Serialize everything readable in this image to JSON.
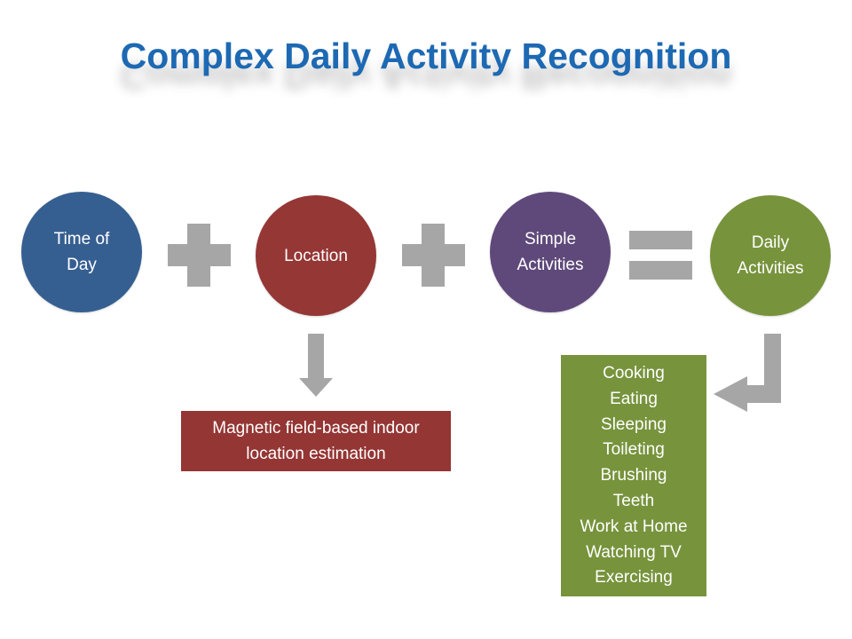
{
  "title": "Complex Daily Activity Recognition",
  "colors": {
    "title": "#1d69b3",
    "time_of_day": "#365f91",
    "location": "#953735",
    "simple_activities": "#5f497a",
    "daily_activities": "#77933c",
    "operators": "#a6a6a6",
    "location_box": "#943634",
    "activities_box": "#77933c"
  },
  "nodes": {
    "time_of_day": {
      "line1": "Time of",
      "line2": "Day"
    },
    "location": {
      "label": "Location"
    },
    "simple_activities": {
      "line1": "Simple",
      "line2": "Activities"
    },
    "daily_activities": {
      "line1": "Daily",
      "line2": "Activities"
    }
  },
  "operators": [
    "plus",
    "plus",
    "equals"
  ],
  "location_box": {
    "line1": "Magnetic field-based indoor",
    "line2": "location estimation"
  },
  "activities_list": [
    "Cooking",
    "Eating",
    "Sleeping",
    "Toileting",
    "Brushing",
    "Teeth",
    "Work at Home",
    "Watching TV",
    "Exercising"
  ]
}
